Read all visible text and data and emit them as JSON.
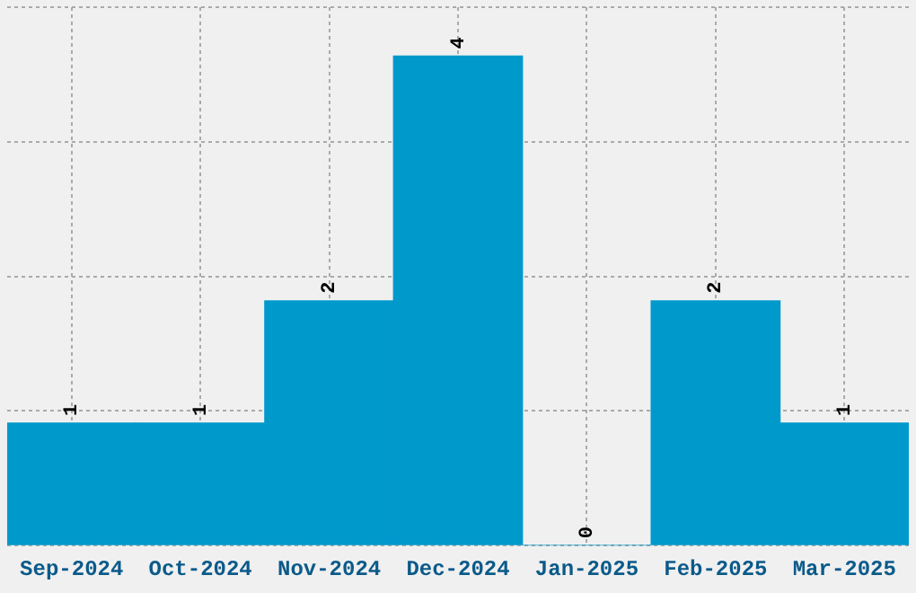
{
  "chart_data": {
    "type": "bar",
    "categories": [
      "Sep-2024",
      "Oct-2024",
      "Nov-2024",
      "Dec-2024",
      "Jan-2025",
      "Feb-2025",
      "Mar-2025"
    ],
    "values": [
      1,
      1,
      2,
      4,
      0,
      2,
      1
    ],
    "color": "#0099cc",
    "data_labels": true,
    "grid": true,
    "tick_labels": "x",
    "ylim": [
      0,
      4.4
    ]
  }
}
